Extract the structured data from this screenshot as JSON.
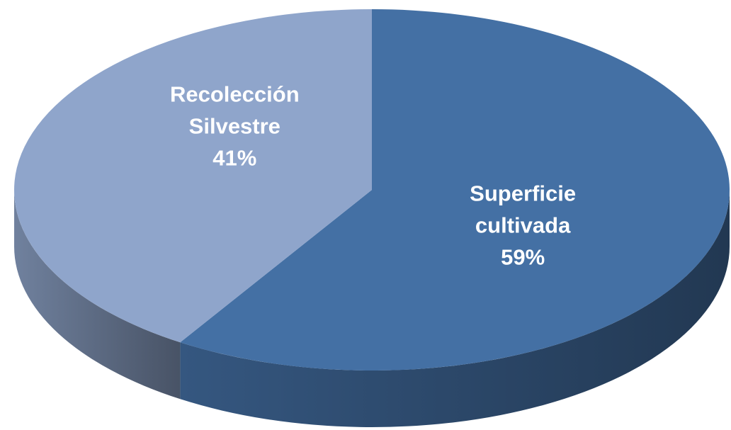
{
  "chart_data": {
    "type": "pie",
    "categories": [
      "Superficie cultivada",
      "Recolección Silvestre"
    ],
    "values": [
      59,
      41
    ],
    "value_labels": [
      "59%",
      "41%"
    ],
    "colors": [
      "#4470a4",
      "#8fa5cb"
    ]
  }
}
